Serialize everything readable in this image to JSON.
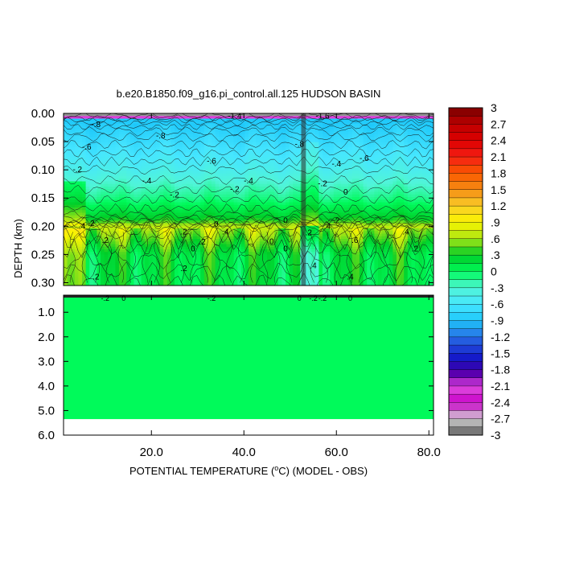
{
  "chart_data": {
    "type": "heatmap",
    "title": "b.e20.B1850.f09_g16.pi_control.all.125 HUDSON BASIN",
    "xlabel": "POTENTIAL TEMPERATURE (",
    "xlabel_unit": "o",
    "xlabel_tail": "C) (MODEL - OBS)",
    "ylabel": "DEPTH (km)",
    "xlim": [
      1,
      81
    ],
    "x_ticks": [
      "20.0",
      "40.0",
      "60.0",
      "80.0"
    ],
    "x_tick_values": [
      20,
      40,
      60,
      80
    ],
    "upper_panel": {
      "ylim": [
        0.0,
        0.305
      ],
      "y_ticks": [
        "0.00",
        "0.05",
        "0.10",
        "0.15",
        "0.20",
        "0.25",
        "0.30"
      ],
      "y_tick_values": [
        0.0,
        0.05,
        0.1,
        0.15,
        0.2,
        0.25,
        0.3
      ]
    },
    "lower_panel": {
      "ylim": [
        0.305,
        6.0
      ],
      "y_ticks": [
        "1.0",
        "2.0",
        "3.0",
        "4.0",
        "5.0",
        "6.0"
      ],
      "y_tick_values": [
        1.0,
        2.0,
        3.0,
        4.0,
        5.0,
        6.0
      ],
      "data_bottom_depth": 5.35,
      "fill_value": 0
    },
    "colorbar": {
      "labels": [
        "3",
        "2.7",
        "2.4",
        "2.1",
        "1.8",
        "1.5",
        "1.2",
        ".9",
        ".6",
        ".3",
        "0",
        "-.3",
        "-.6",
        "-.9",
        "-1.2",
        "-1.5",
        "-1.8",
        "-2.1",
        "-2.4",
        "-2.7",
        "-3"
      ],
      "values": [
        3,
        2.7,
        2.4,
        2.1,
        1.8,
        1.5,
        1.2,
        0.9,
        0.6,
        0.3,
        0,
        -0.3,
        -0.6,
        -0.9,
        -1.2,
        -1.5,
        -1.8,
        -2.1,
        -2.4,
        -2.7,
        -3
      ]
    },
    "depth_profile": [
      {
        "depth": 0.0,
        "value": -2.4
      },
      {
        "depth": 0.01,
        "value": -0.9
      },
      {
        "depth": 0.05,
        "value": -0.7
      },
      {
        "depth": 0.1,
        "value": -0.45
      },
      {
        "depth": 0.15,
        "value": -0.1
      },
      {
        "depth": 0.19,
        "value": 0.35
      },
      {
        "depth": 0.2,
        "value": 0.7
      },
      {
        "depth": 0.25,
        "value": 0.2
      },
      {
        "depth": 0.3,
        "value": 0.15
      }
    ],
    "contour_labels": [
      {
        "text": "-1.4",
        "x": 38,
        "d": 0.005
      },
      {
        "text": "-.8",
        "x": 8,
        "d": 0.02
      },
      {
        "text": "-.8",
        "x": 22,
        "d": 0.04
      },
      {
        "text": "-1.6",
        "x": 57,
        "d": 0.005
      },
      {
        "text": "-.8",
        "x": 52,
        "d": 0.055
      },
      {
        "text": "-.6",
        "x": 6,
        "d": 0.06
      },
      {
        "text": "-.6",
        "x": 33,
        "d": 0.085
      },
      {
        "text": "-.6",
        "x": 66,
        "d": 0.08
      },
      {
        "text": "-.4",
        "x": 60,
        "d": 0.09
      },
      {
        "text": "-.2",
        "x": 4,
        "d": 0.1
      },
      {
        "text": "-.4",
        "x": 19,
        "d": 0.12
      },
      {
        "text": "-.4",
        "x": 41,
        "d": 0.12
      },
      {
        "text": "-.2",
        "x": 25,
        "d": 0.145
      },
      {
        "text": "-.2",
        "x": 38,
        "d": 0.135
      },
      {
        "text": "-.2",
        "x": 57,
        "d": 0.125
      },
      {
        "text": "0",
        "x": 62,
        "d": 0.14
      },
      {
        "text": ".2",
        "x": 7,
        "d": 0.195
      },
      {
        "text": ".4",
        "x": 5,
        "d": 0.2
      },
      {
        "text": ".2",
        "x": 27,
        "d": 0.21
      },
      {
        "text": "0",
        "x": 34,
        "d": 0.197
      },
      {
        "text": ".4",
        "x": 36,
        "d": 0.21
      },
      {
        "text": "0",
        "x": 49,
        "d": 0.19
      },
      {
        "text": ".2",
        "x": 54,
        "d": 0.212
      },
      {
        "text": ".4",
        "x": 58,
        "d": 0.2
      },
      {
        "text": ".2",
        "x": 60,
        "d": 0.19
      },
      {
        "text": ".4",
        "x": 75,
        "d": 0.21
      },
      {
        "text": ".2",
        "x": 10,
        "d": 0.225
      },
      {
        "text": ".2",
        "x": 31,
        "d": 0.228
      },
      {
        "text": "0",
        "x": 29,
        "d": 0.24
      },
      {
        "text": "0",
        "x": 46,
        "d": 0.227
      },
      {
        "text": "0",
        "x": 49,
        "d": 0.24
      },
      {
        "text": ".6",
        "x": 64,
        "d": 0.225
      },
      {
        "text": ".2",
        "x": 77,
        "d": 0.24
      },
      {
        "text": ".2",
        "x": 27,
        "d": 0.275
      },
      {
        "text": ".4",
        "x": 55,
        "d": 0.27
      },
      {
        "text": ".2",
        "x": 8,
        "d": 0.29
      },
      {
        "text": ".4",
        "x": 63,
        "d": 0.29
      },
      {
        "text": "-.2",
        "x": 5,
        "d": 0.31
      },
      {
        "text": "-.2",
        "x": 24,
        "d": 0.31
      },
      {
        "text": "-.2",
        "x": 34,
        "d": 0.31
      },
      {
        "text": "-.2",
        "x": 35,
        "d": 0.31
      },
      {
        "text": "-.2",
        "x": 49,
        "d": 0.31
      },
      {
        "text": "-.2",
        "x": 59,
        "d": 0.31
      },
      {
        "text": "-.2",
        "x": 66,
        "d": 0.31
      }
    ]
  }
}
